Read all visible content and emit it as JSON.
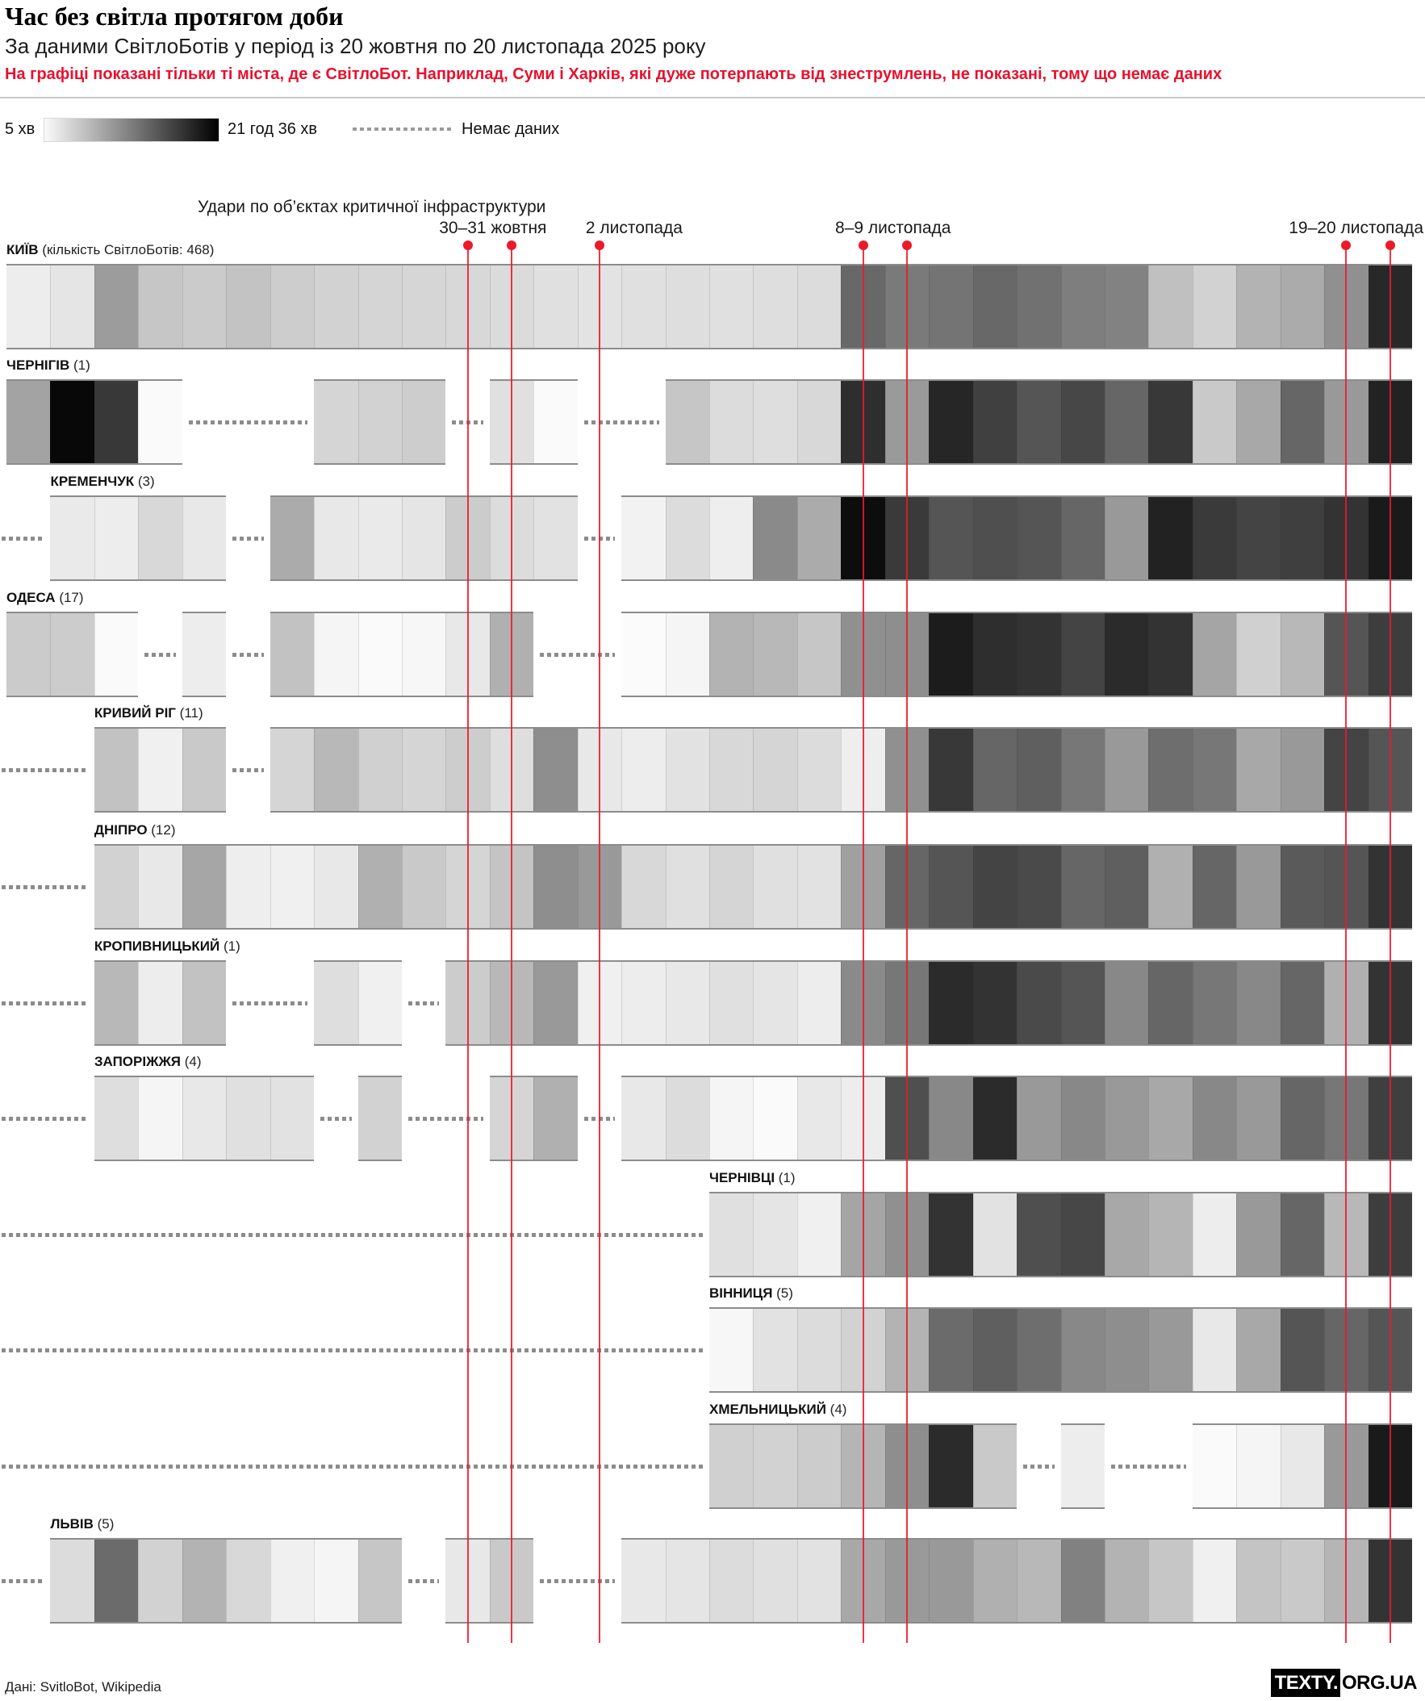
{
  "header": {
    "title": "Час без світла протягом доби",
    "subtitle": "За даними СвітлоБотів у період із 20 жовтня по 20 листопада 2025 року",
    "note": "На графіці показані тільки ті міста, де є СвітлоБот. Наприклад, Суми і Харків, які дуже потерпають від знеструмлень, не показані, тому що немає даних"
  },
  "legend": {
    "min_label": "5 хв",
    "max_label": "21 год 36 хв",
    "no_data_label": "Немає даних"
  },
  "annotation": {
    "strikes_label": "Удари по об’єктах критичної інфраструктури"
  },
  "footer": {
    "source": "Дані: SvitloBot, Wikipedia",
    "logo_black": "TEXTY.",
    "logo_rest": "ORG.UA"
  },
  "colors": {
    "accent_red": "#e8112d",
    "dash_gray": "#8c8c8c",
    "segment_border": "#2d2d2d"
  },
  "chart_data": {
    "type": "heatmap",
    "title": "Час без світла протягом доби",
    "period": {
      "start": "2025-10-20",
      "end": "2025-11-20"
    },
    "scale": {
      "min_label": "5 хв",
      "max_label": "21 год 36 хв",
      "min_color": "#ffffff",
      "max_color": "#000000",
      "encoding": "darker cell = longer daily outage; null = немає даних"
    },
    "dates": [
      "2025-10-20",
      "2025-10-21",
      "2025-10-22",
      "2025-10-23",
      "2025-10-24",
      "2025-10-25",
      "2025-10-26",
      "2025-10-27",
      "2025-10-28",
      "2025-10-29",
      "2025-10-30",
      "2025-10-31",
      "2025-11-01",
      "2025-11-02",
      "2025-11-03",
      "2025-11-04",
      "2025-11-05",
      "2025-11-06",
      "2025-11-07",
      "2025-11-08",
      "2025-11-09",
      "2025-11-10",
      "2025-11-11",
      "2025-11-12",
      "2025-11-13",
      "2025-11-14",
      "2025-11-15",
      "2025-11-16",
      "2025-11-17",
      "2025-11-18",
      "2025-11-19",
      "2025-11-20"
    ],
    "event_lines": [
      {
        "label": "30–31 жовтня",
        "days": [
          10,
          11
        ]
      },
      {
        "label": "2 листопада",
        "days": [
          13
        ]
      },
      {
        "label": "8–9 листопада",
        "days": [
          19,
          20
        ]
      },
      {
        "label": "19–20 листопада",
        "days": [
          30,
          31
        ]
      }
    ],
    "series": [
      {
        "city": "КИЇВ",
        "bots": 468,
        "count_label": "кількість СвітлоБотів: 468",
        "days": [
          "#ededed",
          "#e5e5e5",
          "#9c9c9c",
          "#c6c6c6",
          "#cbcbcb",
          "#c3c3c3",
          "#cdcdcd",
          "#d2d2d2",
          "#d5d5d5",
          "#d6d6d6",
          "#d8d8d8",
          "#dbdbdb",
          "#e0e0e0",
          "#e3e3e3",
          "#e0e0e0",
          "#dedede",
          "#e0e0e0",
          "#dedede",
          "#dcdcdc",
          "#686868",
          "#7a7a7a",
          "#747474",
          "#686868",
          "#717171",
          "#7e7e7e",
          "#828282",
          "#c0c0c0",
          "#d2d2d2",
          "#b3b3b3",
          "#ababab",
          "#909090",
          "#282828"
        ]
      },
      {
        "city": "ЧЕРНІГІВ",
        "bots": 1,
        "count_label": "1",
        "days": [
          "#a3a3a3",
          "#080808",
          "#383838",
          "#fafafa",
          null,
          null,
          null,
          "#d5d5d5",
          "#d2d2d2",
          "#cdcdcd",
          null,
          "#e0e0e0",
          "#fafafa",
          null,
          null,
          "#c6c6c6",
          "#dcdcdc",
          "#dedede",
          "#d8d8d8",
          "#2e2e2e",
          "#9a9a9a",
          "#262626",
          "#404040",
          "#555555",
          "#474747",
          "#666666",
          "#383838",
          "#c9c9c9",
          "#a8a8a8",
          "#666666",
          "#999999",
          "#222222"
        ]
      },
      {
        "city": "КРЕМЕНЧУК",
        "bots": 3,
        "count_label": "3",
        "days": [
          null,
          "#eaeaea",
          "#ededed",
          "#d8d8d8",
          "#e8e8e8",
          null,
          "#ababab",
          "#e8e8e8",
          "#eaeaea",
          "#e5e5e5",
          "#cccccc",
          "#dcdcdc",
          "#e2e2e2",
          null,
          "#f2f2f2",
          "#dcdcdc",
          "#eeeeee",
          "#8a8a8a",
          "#ababab",
          "#0d0d0d",
          "#3a3a3a",
          "#555555",
          "#4f4f4f",
          "#555555",
          "#666666",
          "#999999",
          "#222222",
          "#3a3a3a",
          "#444444",
          "#3f3f3f",
          "#333333",
          "#1a1a1a"
        ]
      },
      {
        "city": "ОДЕСА",
        "bots": 17,
        "count_label": "17",
        "days": [
          "#cbcbcb",
          "#cccccc",
          "#fafafa",
          null,
          "#ededed",
          null,
          "#c2c2c2",
          "#f5f5f5",
          "#fafafa",
          "#f7f7f7",
          "#e8e8e8",
          "#b0b0b0",
          null,
          null,
          "#fbfbfb",
          "#f5f5f5",
          "#b3b3b3",
          "#b8b8b8",
          "#c6c6c6",
          "#909090",
          "#8e8e8e",
          "#1c1c1c",
          "#2e2e2e",
          "#333333",
          "#444444",
          "#2b2b2b",
          "#333333",
          "#a5a5a5",
          "#d0d0d0",
          "#b8b8b8",
          "#555555",
          "#3d3d3d"
        ]
      },
      {
        "city": "КРИВИЙ РІГ",
        "bots": 11,
        "count_label": "11",
        "days": [
          null,
          null,
          "#c2c2c2",
          "#f0f0f0",
          "#c9c9c9",
          null,
          "#d5d5d5",
          "#b8b8b8",
          "#d0d0d0",
          "#d5d5d5",
          "#cdcdcd",
          "#dedede",
          "#8e8e8e",
          "#e8e8e8",
          "#ededed",
          "#e2e2e2",
          "#d8d8d8",
          "#d5d5d5",
          "#dcdcdc",
          "#eeeeee",
          "#909090",
          "#383838",
          "#666666",
          "#5f5f5f",
          "#777777",
          "#999999",
          "#6e6e6e",
          "#777777",
          "#a8a8a8",
          "#999999",
          "#444444",
          "#555555"
        ]
      },
      {
        "city": "ДНІПРО",
        "bots": 12,
        "count_label": "12",
        "days": [
          null,
          null,
          "#d2d2d2",
          "#e8e8e8",
          "#a6a6a6",
          "#eeeeee",
          "#f0f0f0",
          "#e8e8e8",
          "#b0b0b0",
          "#c9c9c9",
          "#d5d5d5",
          "#c4c4c4",
          "#8e8e8e",
          "#999999",
          "#d8d8d8",
          "#e0e0e0",
          "#d5d5d5",
          "#e0e0e0",
          "#e2e2e2",
          "#a0a0a0",
          "#666666",
          "#555555",
          "#444444",
          "#4a4a4a",
          "#666666",
          "#5f5f5f",
          "#b0b0b0",
          "#666666",
          "#999999",
          "#5a5a5a",
          "#555555",
          "#333333"
        ]
      },
      {
        "city": "КРОПИВНИЦЬКИЙ",
        "bots": 1,
        "count_label": "1",
        "days": [
          null,
          null,
          "#b8b8b8",
          "#ededed",
          "#c2c2c2",
          null,
          null,
          "#dedede",
          "#f0f0f0",
          null,
          "#cccccc",
          "#b8b8b8",
          "#999999",
          "#f0f0f0",
          "#ededed",
          "#e8e8e8",
          "#e0e0e0",
          "#e5e5e5",
          "#ededed",
          "#8a8a8a",
          "#777777",
          "#2b2b2b",
          "#333333",
          "#4a4a4a",
          "#555555",
          "#888888",
          "#666666",
          "#777777",
          "#888888",
          "#666666",
          "#b0b0b0",
          "#333333"
        ]
      },
      {
        "city": "ЗАПОРІЖЖЯ",
        "bots": 4,
        "count_label": "4",
        "days": [
          null,
          null,
          "#dedede",
          "#f5f5f5",
          "#e8e8e8",
          "#e0e0e0",
          "#e2e2e2",
          null,
          "#d2d2d2",
          null,
          null,
          "#d5d5d5",
          "#b0b0b0",
          null,
          "#e8e8e8",
          "#dcdcdc",
          "#f5f5f5",
          "#fafafa",
          "#e8e8e8",
          "#ededed",
          "#4f4f4f",
          "#888888",
          "#2b2b2b",
          "#999999",
          "#888888",
          "#999999",
          "#a8a8a8",
          "#888888",
          "#999999",
          "#666666",
          "#777777",
          "#3f3f3f"
        ]
      },
      {
        "city": "ЧЕРНІВЦІ",
        "bots": 1,
        "count_label": "1",
        "days": [
          null,
          null,
          null,
          null,
          null,
          null,
          null,
          null,
          null,
          null,
          null,
          null,
          null,
          null,
          null,
          null,
          "#e0e0e0",
          "#e5e5e5",
          "#f0f0f0",
          "#a5a5a5",
          "#909090",
          "#333333",
          "#e2e2e2",
          "#4f4f4f",
          "#474747",
          "#a8a8a8",
          "#b5b5b5",
          "#ededed",
          "#999999",
          "#666666",
          "#b8b8b8",
          "#3d3d3d"
        ]
      },
      {
        "city": "ВІННИЦЯ",
        "bots": 5,
        "count_label": "5",
        "days": [
          null,
          null,
          null,
          null,
          null,
          null,
          null,
          null,
          null,
          null,
          null,
          null,
          null,
          null,
          null,
          null,
          "#f7f7f7",
          "#e2e2e2",
          "#dcdcdc",
          "#d2d2d2",
          "#b3b3b3",
          "#6b6b6b",
          "#5f5f5f",
          "#6e6e6e",
          "#888888",
          "#8e8e8e",
          "#999999",
          "#e8e8e8",
          "#a8a8a8",
          "#555555",
          "#666666",
          "#555555"
        ]
      },
      {
        "city": "ХМЕЛЬНИЦЬКИЙ",
        "bots": 4,
        "count_label": "4",
        "days": [
          null,
          null,
          null,
          null,
          null,
          null,
          null,
          null,
          null,
          null,
          null,
          null,
          null,
          null,
          null,
          null,
          "#d0d0d0",
          "#d2d2d2",
          "#cccccc",
          "#b5b5b5",
          "#8e8e8e",
          "#2b2b2b",
          "#c9c9c9",
          null,
          "#ededed",
          null,
          null,
          "#fafafa",
          "#f5f5f5",
          "#e8e8e8",
          "#999999",
          "#1a1a1a"
        ]
      },
      {
        "city": "ЛЬВІВ",
        "bots": 5,
        "count_label": "5",
        "days": [
          null,
          "#dcdcdc",
          "#6b6b6b",
          "#d2d2d2",
          "#b3b3b3",
          "#d8d8d8",
          "#f0f0f0",
          "#f5f5f5",
          "#c6c6c6",
          null,
          "#e8e8e8",
          "#c9c9c9",
          null,
          null,
          "#e8e8e8",
          "#e5e5e5",
          "#dcdcdc",
          "#e0e0e0",
          "#e2e2e2",
          "#a8a8a8",
          "#999999",
          "#999999",
          "#b0b0b0",
          "#b8b8b8",
          "#818181",
          "#b3b3b3",
          "#c6c6c6",
          "#f0f0f0",
          "#c4c4c4",
          "#c9c9c9",
          "#b5b5b5",
          "#333333"
        ]
      }
    ]
  }
}
